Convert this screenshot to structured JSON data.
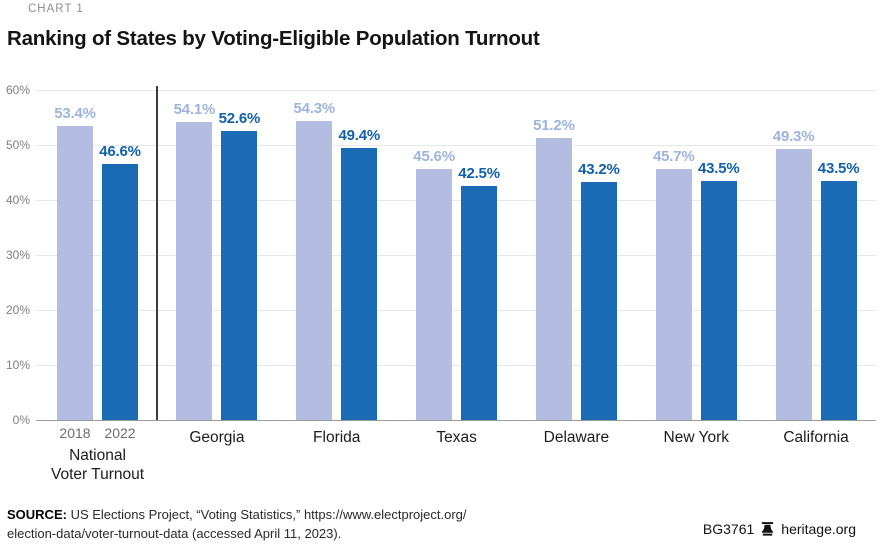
{
  "header": {
    "eyebrow": "CHART 1",
    "title": "Ranking of States by Voting-Eligible Population Turnout"
  },
  "chart_data": {
    "type": "bar",
    "title": "Ranking of States by Voting-Eligible Population Turnout",
    "categories": [
      "National Voter Turnout",
      "Georgia",
      "Florida",
      "Texas",
      "Delaware",
      "New York",
      "California"
    ],
    "series": [
      {
        "name": "2018",
        "values": [
          53.4,
          54.1,
          54.3,
          45.6,
          51.2,
          45.7,
          49.3
        ]
      },
      {
        "name": "2022",
        "values": [
          46.6,
          52.6,
          49.4,
          42.5,
          43.2,
          43.5,
          43.5
        ]
      }
    ],
    "value_label_format": "{value}%",
    "ylim": [
      0,
      60
    ],
    "yticks": [
      "0%",
      "10%",
      "20%",
      "30%",
      "40%",
      "50%",
      "60%"
    ],
    "grid": true,
    "legend_position": "none",
    "year_labels_under_first_group": [
      "2018",
      "2022"
    ],
    "first_group_label_lines": [
      "National",
      "Voter Turnout"
    ],
    "divider_after_first_group": true
  },
  "colors": {
    "bar_2018": "#b2bde1",
    "bar_2022": "#1a6ab4",
    "value_label_2018": "#9fb3de",
    "value_label_2022": "#1060ab",
    "gridline": "#e7e7e7",
    "baseline": "#9b9b9b",
    "divider": "#3c3c3c"
  },
  "footer": {
    "source_label": "SOURCE:",
    "source_line1": "US Elections Project, “Voting Statistics,” https://www.electproject.org/",
    "source_line2": "election-data/voter-turnout-data  (accessed April 11, 2023).",
    "doc_id": "BG3761",
    "brand_icon": "liberty-bell",
    "brand": "heritage.org"
  }
}
